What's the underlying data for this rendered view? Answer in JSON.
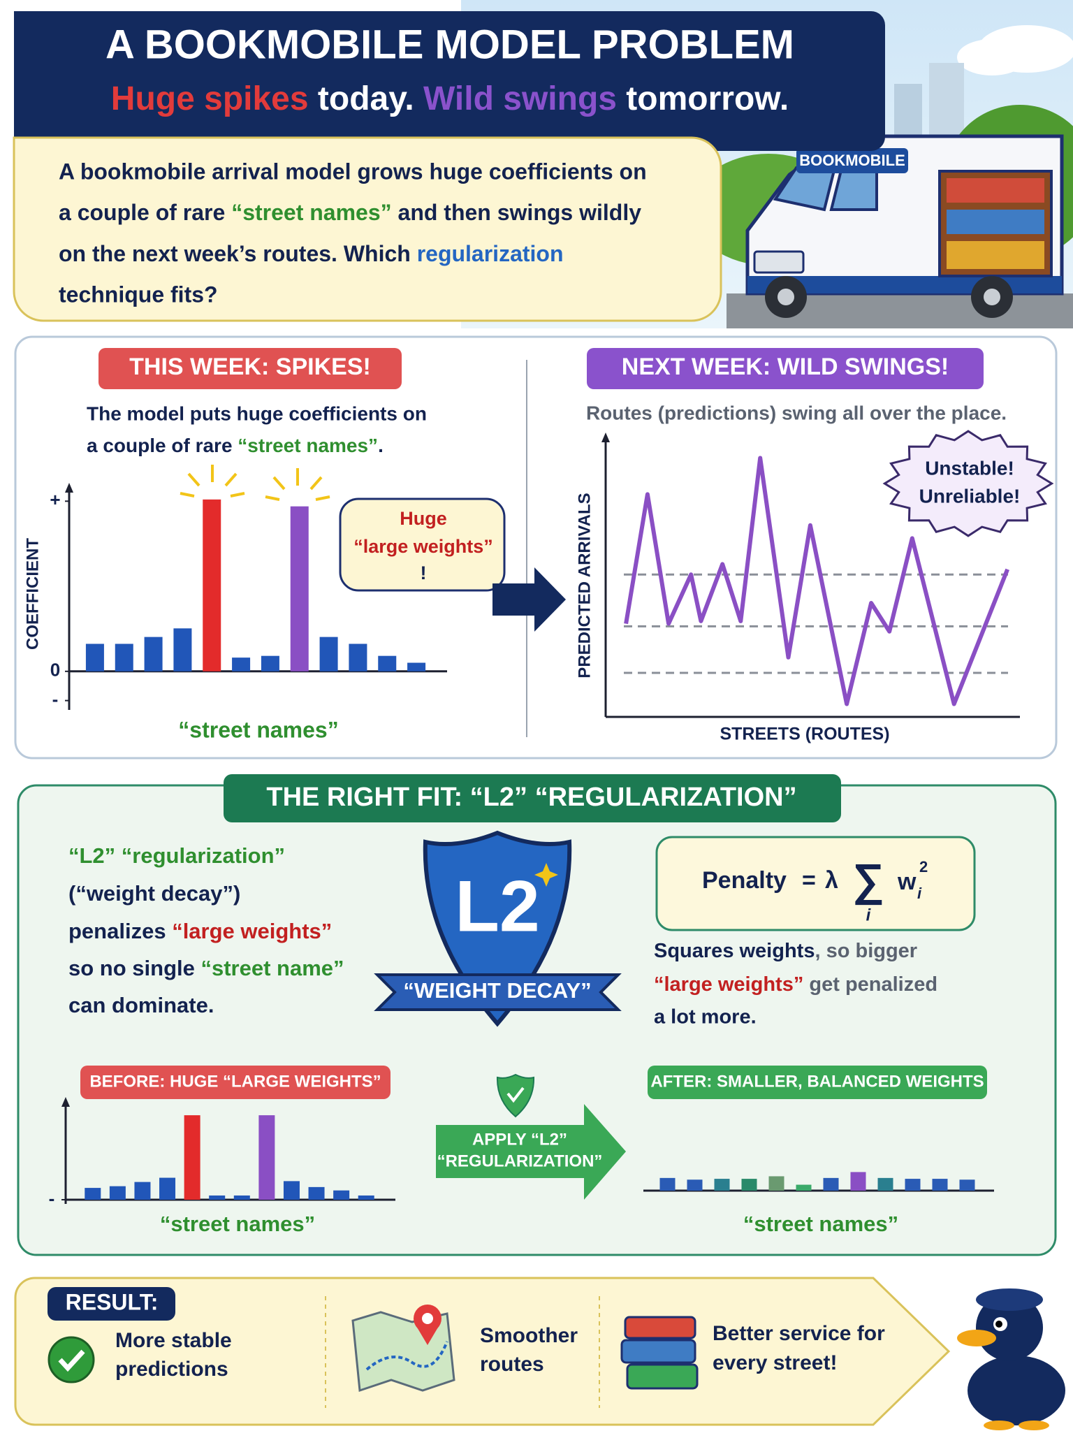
{
  "header": {
    "title": "A BOOKMOBILE MODEL PROBLEM",
    "subtitle": [
      "Huge spikes",
      " today. ",
      "Wild swings",
      " tomorrow."
    ],
    "truck_sign": "BOOKMOBILE"
  },
  "intro": [
    [
      "A bookmobile arrival model grows huge coefficients on"
    ],
    [
      "a couple of rare ",
      "“street names”",
      " and then swings wildly"
    ],
    [
      "on the next week’s routes. Which ",
      "regularization"
    ],
    [
      "technique fits?"
    ]
  ],
  "this_week": {
    "label": "THIS WEEK: SPIKES!",
    "description": [
      [
        "The model puts huge coefficients on"
      ],
      [
        "a couple of rare ",
        "“street names”",
        "."
      ]
    ],
    "callout": [
      "Huge",
      "“large weights”",
      "!"
    ],
    "chart": {
      "type": "bar",
      "y_label": "COEFFICIENT",
      "x_label": "“street names”",
      "values": [
        1.6,
        1.6,
        2.0,
        2.5,
        10,
        0.8,
        0.9,
        9.6,
        2.0,
        1.6,
        0.9,
        0.5
      ],
      "colors": [
        "#2156b8",
        "#2156b8",
        "#2156b8",
        "#2156b8",
        "#e32b2b",
        "#2156b8",
        "#2156b8",
        "#8a4fc4",
        "#2156b8",
        "#2156b8",
        "#2156b8",
        "#2156b8"
      ],
      "ylim": [
        -2,
        10.4
      ],
      "yticks": [
        {
          "value": 9.9,
          "label": "+"
        },
        {
          "value": 0,
          "label": "0"
        },
        {
          "value": -1.7,
          "label": "-"
        }
      ]
    }
  },
  "next_week": {
    "label": "NEXT WEEK: WILD SWINGS!",
    "description": "Routes (predictions) swing all over the place.",
    "badge": [
      "Unstable!",
      "Unreliable!"
    ],
    "chart": {
      "type": "line",
      "y_label": "PREDICTED ARRIVALS",
      "x_label": "STREETS (ROUTES)",
      "color": "#8a4fc4",
      "x": [
        4.9,
        10.1,
        15.2,
        20.6,
        23.0,
        28.2,
        32.6,
        37.3,
        44.1,
        49.4,
        58.2,
        64.1,
        68.5,
        74.0,
        84.1,
        97.0
      ],
      "values": [
        3.6,
        8.6,
        3.6,
        5.5,
        3.7,
        5.9,
        3.7,
        10.0,
        2.3,
        7.4,
        0.5,
        4.4,
        3.3,
        6.9,
        0.5,
        5.7
      ],
      "xlim": [
        0,
        100
      ],
      "ylim": [
        0,
        10.5
      ],
      "reference_lines": [
        5.5,
        3.5,
        1.7
      ]
    }
  },
  "right_fit": {
    "banner": "THE RIGHT FIT: “L2” “REGULARIZATION”",
    "explanation": [
      [
        "“L2” “regularization”"
      ],
      [
        "(“weight decay”)"
      ],
      [
        "penalizes ",
        "“large weights”"
      ],
      [
        "so no single ",
        "“street name”"
      ],
      [
        "can dominate."
      ]
    ],
    "shield": {
      "title": "L2",
      "ribbon": "“WEIGHT DECAY”"
    },
    "formula": {
      "lhs": "Penalty",
      "eq": "=",
      "lambda": "λ",
      "sum": "∑",
      "index": "i",
      "weight": "w",
      "sub": "i",
      "power": "2"
    },
    "note": [
      [
        "Squares weights",
        ", so bigger"
      ],
      [
        "“large weights”",
        " get penalized"
      ],
      [
        "a lot more."
      ]
    ],
    "before": {
      "label": "BEFORE: HUGE “LARGE WEIGHTS”",
      "chart": {
        "type": "bar",
        "x_label": "“street names”",
        "values": [
          1.4,
          1.6,
          2.1,
          2.6,
          10,
          0.5,
          0.5,
          10,
          2.2,
          1.5,
          1.1,
          0.5
        ],
        "colors": [
          "#2156b8",
          "#2156b8",
          "#2156b8",
          "#2156b8",
          "#e32b2b",
          "#2156b8",
          "#2156b8",
          "#8a4fc4",
          "#2156b8",
          "#2156b8",
          "#2156b8",
          "#2156b8"
        ],
        "ylim": [
          0,
          11
        ],
        "yticks": [
          {
            "value": 0,
            "label": "-"
          }
        ]
      }
    },
    "apply": [
      "APPLY “L2”",
      "“REGULARIZATION”"
    ],
    "after": {
      "label": "AFTER: SMALLER, BALANCED WEIGHTS",
      "chart": {
        "type": "bar",
        "x_label": "“street names”",
        "values": [
          1.5,
          1.3,
          1.4,
          1.4,
          1.7,
          0.7,
          1.5,
          2.2,
          1.5,
          1.4,
          1.4,
          1.3
        ],
        "colors": [
          "#2a5bb5",
          "#2a5bb5",
          "#2a7f8f",
          "#2a8a6a",
          "#6a9a70",
          "#3aaa6a",
          "#2a5bb5",
          "#8a4fc4",
          "#2a7f8f",
          "#2a5bb5",
          "#2a5bb5",
          "#2a5bb5"
        ],
        "ylim": [
          0,
          11
        ]
      }
    }
  },
  "result": {
    "label": "RESULT:",
    "items": [
      [
        "More stable",
        "predictions"
      ],
      [
        "Smoother",
        "routes"
      ],
      [
        "Better service for",
        "every street!"
      ]
    ]
  }
}
